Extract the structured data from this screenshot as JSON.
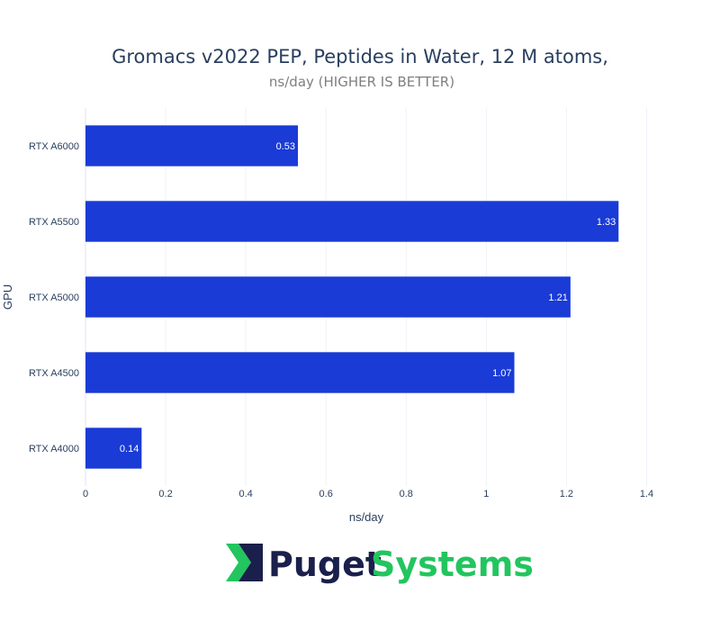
{
  "chart_data": {
    "type": "bar",
    "orientation": "horizontal",
    "title": "Gromacs v2022 PEP, Peptides in Water, 12 M atoms,",
    "subtitle": "ns/day (HIGHER IS BETTER)",
    "xlabel": "ns/day",
    "ylabel": "GPU",
    "categories": [
      "RTX A6000",
      "RTX A5500",
      "RTX A5000",
      "RTX A4500",
      "RTX A4000"
    ],
    "values": [
      0.53,
      1.33,
      1.21,
      1.07,
      0.14
    ],
    "value_labels": [
      "0.53",
      "1.33",
      "1.21",
      "1.07",
      "0.14"
    ],
    "xlim": [
      0,
      1.5
    ],
    "xticks": [
      0,
      0.2,
      0.4,
      0.6,
      0.8,
      1,
      1.2,
      1.4
    ],
    "xtick_labels": [
      "0",
      "0.2",
      "0.4",
      "0.6",
      "0.8",
      "1",
      "1.2",
      "1.4"
    ],
    "grid": true,
    "bar_color": "#1a3bd6"
  },
  "logo": {
    "word1": "Puget",
    "word2": "Systems",
    "icon": "chevron-logo-icon",
    "color_dark": "#1b1f4b",
    "color_green": "#22c55e"
  }
}
